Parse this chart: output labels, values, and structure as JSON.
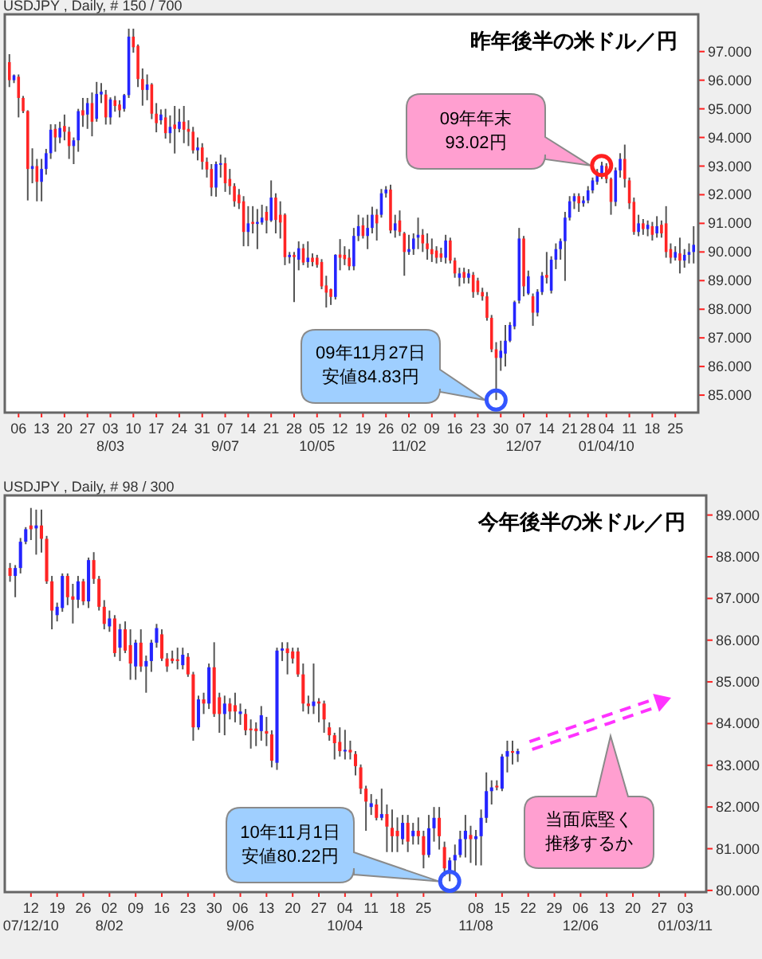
{
  "chart_data": [
    {
      "type": "candlestick",
      "subtitle": "USDJPY , Daily, # 150 / 700",
      "title": "昨年後半の米ドル／円",
      "categories": [
        null,
        null,
        "06",
        null,
        null,
        null,
        null,
        "13",
        null,
        null,
        null,
        null,
        "20",
        null,
        null,
        null,
        null,
        "27",
        null,
        null,
        null,
        null,
        "03",
        null,
        null,
        null,
        null,
        "10",
        null,
        null,
        null,
        null,
        "17",
        null,
        null,
        null,
        null,
        "24",
        null,
        null,
        null,
        null,
        "31",
        null,
        null,
        null,
        null,
        "07",
        null,
        null,
        null,
        null,
        "14",
        null,
        null,
        null,
        null,
        "21",
        null,
        null,
        null,
        null,
        "28",
        null,
        null,
        null,
        null,
        "05",
        null,
        null,
        null,
        null,
        "12",
        null,
        null,
        null,
        null,
        "19",
        null,
        null,
        null,
        null,
        "26",
        null,
        null,
        null,
        null,
        "02",
        null,
        null,
        null,
        null,
        "09",
        null,
        null,
        null,
        null,
        "16",
        null,
        null,
        null,
        null,
        "23",
        null,
        null,
        null,
        null,
        "30",
        null,
        null,
        null,
        null,
        "07",
        null,
        null,
        null,
        null,
        "14",
        null,
        null,
        null,
        null,
        "21",
        null,
        null,
        null,
        "28",
        null,
        null,
        null,
        "04",
        null,
        null,
        null,
        null,
        "11",
        null,
        null,
        null,
        null,
        "18",
        null,
        null,
        null,
        null,
        "25",
        null,
        null,
        null,
        null
      ],
      "ohlc": [
        [
          96.63,
          96.91,
          95.76,
          96.0
        ],
        [
          96.0,
          96.2,
          95.9,
          96.17
        ],
        [
          96.12,
          96.2,
          94.7,
          95.38
        ],
        [
          95.38,
          95.45,
          94.85,
          94.92
        ],
        [
          94.92,
          94.95,
          91.8,
          92.9
        ],
        [
          92.9,
          93.62,
          92.4,
          93.0
        ],
        [
          93.0,
          93.25,
          91.77,
          92.45
        ],
        [
          92.45,
          93.25,
          91.77,
          92.9
        ],
        [
          92.9,
          93.6,
          92.7,
          93.45
        ],
        [
          93.45,
          94.46,
          93.25,
          94.27
        ],
        [
          94.3,
          94.46,
          93.5,
          94.0
        ],
        [
          94.0,
          94.55,
          93.8,
          94.33
        ],
        [
          94.4,
          94.8,
          93.9,
          94.2
        ],
        [
          94.2,
          94.37,
          93.25,
          93.7
        ],
        [
          93.7,
          94.0,
          93.07,
          93.9
        ],
        [
          93.9,
          95.0,
          93.5,
          94.92
        ],
        [
          94.95,
          95.38,
          94.37,
          94.77
        ],
        [
          94.8,
          95.38,
          94.3,
          95.2
        ],
        [
          95.2,
          95.57,
          94.04,
          94.55
        ],
        [
          94.65,
          95.94,
          94.55,
          95.52
        ],
        [
          95.5,
          95.9,
          95.2,
          95.6
        ],
        [
          95.5,
          95.66,
          94.45,
          94.7
        ],
        [
          94.7,
          95.4,
          94.45,
          95.33
        ],
        [
          95.3,
          95.45,
          94.9,
          95.1
        ],
        [
          95.15,
          95.3,
          94.7,
          94.95
        ],
        [
          95.0,
          95.52,
          94.9,
          95.48
        ],
        [
          95.48,
          97.8,
          95.38,
          97.52
        ],
        [
          97.52,
          97.8,
          96.96,
          97.15
        ],
        [
          97.2,
          97.25,
          95.76,
          96.04
        ],
        [
          96.04,
          96.41,
          95.11,
          95.66
        ],
        [
          95.66,
          96.2,
          95.3,
          95.85
        ],
        [
          95.85,
          95.9,
          94.64,
          94.83
        ],
        [
          94.83,
          95.2,
          94.18,
          94.5
        ],
        [
          94.6,
          94.98,
          94.45,
          94.8
        ],
        [
          94.7,
          95.0,
          93.96,
          94.15
        ],
        [
          94.15,
          94.77,
          93.8,
          94.37
        ],
        [
          94.45,
          95.1,
          93.44,
          94.3
        ],
        [
          94.3,
          95.0,
          94.18,
          94.55
        ],
        [
          94.55,
          95.1,
          93.8,
          94.27
        ],
        [
          94.3,
          94.6,
          93.7,
          94.2
        ],
        [
          94.2,
          94.37,
          93.44,
          93.55
        ],
        [
          93.55,
          94.0,
          93.2,
          93.65
        ],
        [
          93.65,
          93.8,
          92.88,
          93.15
        ],
        [
          93.15,
          93.3,
          92.6,
          92.88
        ],
        [
          92.9,
          93.07,
          91.95,
          92.25
        ],
        [
          92.25,
          93.16,
          91.93,
          93.07
        ],
        [
          93.07,
          93.4,
          92.6,
          93.1
        ],
        [
          93.1,
          93.3,
          92.1,
          92.4
        ],
        [
          92.55,
          92.9,
          92.0,
          92.3
        ],
        [
          92.3,
          92.4,
          91.58,
          91.77
        ],
        [
          92.0,
          92.2,
          91.5,
          91.7
        ],
        [
          91.77,
          91.95,
          90.2,
          90.7
        ],
        [
          90.7,
          91.6,
          90.2,
          91.0
        ],
        [
          91.05,
          91.6,
          90.65,
          90.98
        ],
        [
          90.98,
          91.5,
          90.1,
          91.05
        ],
        [
          91.03,
          91.65,
          90.95,
          91.2
        ],
        [
          91.4,
          91.6,
          90.65,
          91.1
        ],
        [
          91.1,
          92.5,
          91.05,
          91.9
        ],
        [
          91.9,
          92.05,
          90.65,
          91.12
        ],
        [
          91.3,
          91.77,
          90.47,
          91.03
        ],
        [
          91.3,
          91.35,
          89.54,
          89.82
        ],
        [
          89.82,
          90.0,
          89.6,
          89.9
        ],
        [
          89.9,
          90.0,
          88.25,
          89.82
        ],
        [
          89.73,
          90.37,
          89.36,
          90.13
        ],
        [
          90.13,
          90.28,
          89.54,
          89.63
        ],
        [
          89.65,
          90.37,
          89.45,
          89.8
        ],
        [
          89.8,
          89.95,
          89.5,
          89.65
        ],
        [
          89.8,
          89.9,
          89.45,
          89.55
        ],
        [
          89.65,
          89.75,
          88.7,
          88.8
        ],
        [
          88.83,
          89.17,
          88.06,
          88.58
        ],
        [
          88.7,
          88.72,
          88.15,
          88.43
        ],
        [
          88.43,
          89.92,
          88.34,
          89.9
        ],
        [
          89.91,
          90.45,
          89.36,
          89.8
        ],
        [
          89.9,
          90.2,
          89.54,
          89.75
        ],
        [
          89.8,
          90.1,
          89.36,
          89.5
        ],
        [
          89.5,
          90.84,
          89.36,
          90.56
        ],
        [
          90.56,
          91.3,
          90.38,
          90.9
        ],
        [
          90.93,
          91.2,
          90.47,
          90.56
        ],
        [
          90.56,
          91.3,
          90.1,
          90.84
        ],
        [
          90.84,
          91.58,
          90.65,
          91.3
        ],
        [
          91.3,
          91.5,
          90.4,
          91.0
        ],
        [
          91.3,
          92.2,
          91.2,
          92.05
        ],
        [
          92.05,
          92.3,
          91.9,
          92.18
        ],
        [
          92.18,
          92.35,
          90.65,
          90.75
        ],
        [
          90.75,
          91.3,
          90.5,
          91.0
        ],
        [
          91.1,
          91.45,
          90.56,
          90.7
        ],
        [
          90.65,
          90.7,
          89.17,
          90.0
        ],
        [
          90.0,
          90.6,
          89.9,
          90.1
        ],
        [
          90.1,
          90.65,
          89.9,
          90.47
        ],
        [
          90.5,
          91.2,
          90.1,
          90.6
        ],
        [
          90.6,
          90.8,
          90.0,
          90.3
        ],
        [
          90.3,
          90.65,
          89.73,
          90.1
        ],
        [
          90.1,
          90.47,
          89.65,
          89.92
        ],
        [
          90.05,
          90.2,
          89.6,
          89.8
        ],
        [
          89.95,
          90.15,
          89.65,
          89.8
        ],
        [
          89.8,
          90.6,
          89.6,
          90.4
        ],
        [
          90.4,
          90.5,
          89.6,
          89.7
        ],
        [
          89.7,
          89.8,
          89.1,
          89.25
        ],
        [
          89.1,
          89.45,
          88.8,
          89.25
        ],
        [
          89.3,
          89.45,
          88.9,
          89.1
        ],
        [
          89.1,
          89.4,
          88.9,
          89.25
        ],
        [
          89.2,
          89.3,
          88.4,
          88.6
        ],
        [
          89.0,
          89.1,
          88.5,
          88.6
        ],
        [
          88.6,
          88.75,
          88.3,
          88.45
        ],
        [
          88.45,
          88.6,
          87.6,
          87.7
        ],
        [
          87.7,
          87.8,
          86.5,
          86.6
        ],
        [
          86.6,
          86.85,
          84.83,
          86.3
        ],
        [
          86.3,
          86.9,
          85.85,
          86.55
        ],
        [
          86.45,
          87.45,
          86.0,
          86.9
        ],
        [
          86.9,
          87.55,
          86.85,
          87.45
        ],
        [
          87.4,
          88.3,
          87.3,
          88.25
        ],
        [
          88.3,
          90.84,
          88.2,
          90.47
        ],
        [
          90.47,
          90.56,
          88.45,
          88.8
        ],
        [
          88.55,
          89.35,
          88.5,
          89.15
        ],
        [
          88.45,
          88.55,
          87.42,
          87.88
        ],
        [
          87.88,
          88.7,
          87.75,
          88.61
        ],
        [
          88.6,
          89.3,
          88.5,
          89.17
        ],
        [
          89.2,
          90.0,
          88.9,
          89.1
        ],
        [
          88.65,
          89.85,
          88.55,
          89.73
        ],
        [
          89.73,
          90.3,
          89.4,
          90.1
        ],
        [
          90.1,
          90.47,
          89.73,
          90.38
        ],
        [
          90.38,
          91.4,
          88.99,
          91.2
        ],
        [
          91.2,
          91.95,
          91.1,
          91.77
        ],
        [
          91.77,
          92.05,
          91.5,
          91.95
        ],
        [
          91.95,
          92.05,
          91.4,
          91.7
        ],
        [
          91.7,
          91.95,
          91.58,
          91.8
        ],
        [
          91.8,
          92.3,
          91.7,
          92.15
        ],
        [
          92.15,
          92.6,
          92.05,
          92.5
        ],
        [
          92.45,
          92.9,
          92.35,
          92.7
        ],
        [
          92.65,
          93.15,
          92.55,
          93.02
        ],
        [
          93.0,
          93.1,
          92.4,
          92.55
        ],
        [
          92.55,
          92.6,
          91.3,
          91.75
        ],
        [
          91.75,
          92.95,
          91.6,
          92.85
        ],
        [
          92.85,
          93.45,
          92.6,
          93.25
        ],
        [
          93.25,
          93.75,
          92.25,
          92.55
        ],
        [
          92.5,
          92.6,
          91.5,
          91.7
        ],
        [
          91.75,
          91.9,
          90.6,
          90.7
        ],
        [
          90.7,
          91.3,
          90.55,
          91.0
        ],
        [
          91.0,
          91.15,
          90.6,
          90.8
        ],
        [
          90.8,
          91.1,
          90.55,
          90.95
        ],
        [
          90.9,
          91.05,
          90.4,
          90.6
        ],
        [
          90.65,
          91.25,
          90.5,
          90.9
        ],
        [
          90.95,
          91.1,
          90.5,
          90.65
        ],
        [
          91.0,
          91.6,
          89.8,
          90.0
        ],
        [
          90.1,
          90.3,
          89.6,
          89.8
        ],
        [
          89.8,
          90.2,
          89.7,
          90.0
        ],
        [
          89.95,
          90.5,
          89.25,
          89.7
        ],
        [
          89.7,
          90.1,
          89.45,
          89.9
        ],
        [
          89.9,
          90.3,
          89.6,
          90.0
        ],
        [
          90.0,
          90.9,
          89.6,
          90.25
        ]
      ],
      "ylim": [
        84.39,
        98.3
      ],
      "yticks": [
        {
          "value": 85,
          "label": "85.000"
        },
        {
          "value": 86,
          "label": "86.000"
        },
        {
          "value": 87,
          "label": "87.000"
        },
        {
          "value": 88,
          "label": "88.000"
        },
        {
          "value": 89,
          "label": "89.000"
        },
        {
          "value": 90,
          "label": "90.000"
        },
        {
          "value": 91,
          "label": "91.000"
        },
        {
          "value": 92,
          "label": "92.000"
        },
        {
          "value": 93,
          "label": "93.000"
        },
        {
          "value": 94,
          "label": "94.000"
        },
        {
          "value": 95,
          "label": "95.000"
        },
        {
          "value": 96,
          "label": "96.000"
        },
        {
          "value": 97,
          "label": "97.000"
        }
      ],
      "annotations": [
        "09年11月27日安値84.83円",
        "09年年末93.02円",
        "8/03",
        "9/07",
        "10/05",
        "11/02",
        "12/07",
        "01/04/10"
      ]
    },
    {
      "type": "candlestick",
      "subtitle": "USDJPY , Daily, # 98 / 300",
      "title": "今年後半の米ドル／円",
      "categories": [
        null,
        null,
        null,
        null,
        "12",
        null,
        null,
        null,
        null,
        "19",
        null,
        null,
        null,
        null,
        "26",
        null,
        null,
        null,
        null,
        "02",
        null,
        null,
        null,
        null,
        "09",
        null,
        null,
        null,
        null,
        "16",
        null,
        null,
        null,
        null,
        "23",
        null,
        null,
        null,
        null,
        "30",
        null,
        null,
        null,
        null,
        "06",
        null,
        null,
        null,
        null,
        "13",
        null,
        null,
        null,
        null,
        "20",
        null,
        null,
        null,
        null,
        "27",
        null,
        null,
        null,
        null,
        "04",
        null,
        null,
        null,
        null,
        "11",
        null,
        null,
        null,
        null,
        "18",
        null,
        null,
        null,
        null,
        "25",
        null,
        null,
        null,
        null,
        null,
        null,
        null,
        null,
        null,
        "08",
        null,
        null,
        null,
        null,
        "15",
        null,
        null,
        null,
        null,
        "22",
        null,
        null,
        null,
        null,
        "29",
        null,
        null,
        null,
        null,
        "06",
        null,
        null,
        null,
        null,
        "13",
        null,
        null,
        null,
        null,
        "20",
        null,
        null,
        null,
        null,
        "27",
        null,
        null,
        null,
        null,
        "03",
        null,
        null,
        null
      ],
      "ohlc": [
        [
          87.73,
          87.85,
          87.4,
          87.54
        ],
        [
          87.54,
          87.8,
          87.03,
          87.73
        ],
        [
          87.73,
          88.45,
          87.6,
          88.36
        ],
        [
          88.36,
          88.71,
          88.3,
          88.66
        ],
        [
          88.75,
          89.17,
          88.4,
          88.66
        ],
        [
          88.68,
          89.13,
          88.05,
          88.75
        ],
        [
          88.75,
          89.13,
          88.1,
          88.43
        ],
        [
          88.43,
          88.5,
          87.35,
          87.41
        ],
        [
          87.41,
          87.54,
          86.26,
          86.71
        ],
        [
          86.6,
          86.9,
          86.45,
          86.8
        ],
        [
          86.77,
          87.6,
          86.68,
          87.54
        ],
        [
          87.54,
          87.6,
          86.84,
          87.03
        ],
        [
          87.05,
          87.35,
          86.4,
          86.97
        ],
        [
          86.97,
          87.54,
          86.77,
          87.41
        ],
        [
          87.41,
          87.47,
          86.84,
          86.93
        ],
        [
          86.93,
          87.98,
          86.77,
          87.92
        ],
        [
          87.92,
          88.11,
          87.35,
          87.47
        ],
        [
          87.47,
          87.54,
          86.71,
          86.8
        ],
        [
          86.8,
          86.96,
          86.26,
          86.39
        ],
        [
          86.33,
          86.71,
          86.2,
          86.52
        ],
        [
          86.52,
          86.6,
          85.6,
          85.69
        ],
        [
          85.82,
          86.39,
          85.5,
          86.26
        ],
        [
          86.26,
          86.45,
          85.69,
          85.75
        ],
        [
          85.88,
          86.26,
          85.05,
          85.44
        ],
        [
          85.37,
          86.01,
          85.05,
          85.94
        ],
        [
          85.94,
          86.26,
          85.24,
          85.37
        ],
        [
          85.37,
          85.63,
          84.74,
          85.5
        ],
        [
          85.5,
          86.01,
          85.24,
          85.94
        ],
        [
          85.94,
          86.39,
          85.82,
          86.29
        ],
        [
          86.14,
          86.26,
          85.5,
          85.56
        ],
        [
          85.56,
          85.69,
          85.24,
          85.37
        ],
        [
          85.56,
          85.75,
          85.44,
          85.5
        ],
        [
          85.54,
          85.82,
          85.3,
          85.5
        ],
        [
          85.4,
          85.82,
          85.3,
          85.65
        ],
        [
          85.6,
          85.69,
          85.12,
          85.18
        ],
        [
          85.18,
          85.24,
          83.59,
          83.91
        ],
        [
          83.91,
          84.67,
          83.85,
          84.58
        ],
        [
          84.58,
          84.74,
          84.23,
          84.48
        ],
        [
          84.48,
          85.44,
          84.35,
          85.35
        ],
        [
          85.35,
          85.95,
          84.16,
          84.23
        ],
        [
          84.63,
          84.74,
          83.78,
          84.23
        ],
        [
          84.23,
          84.67,
          83.72,
          84.48
        ],
        [
          84.48,
          84.61,
          84.1,
          84.29
        ],
        [
          84.44,
          84.74,
          84.03,
          84.29
        ],
        [
          84.23,
          84.48,
          83.97,
          84.29
        ],
        [
          84.23,
          84.35,
          83.72,
          83.84
        ],
        [
          83.88,
          84.1,
          83.4,
          83.84
        ],
        [
          83.88,
          84.03,
          83.46,
          83.82
        ],
        [
          83.82,
          84.42,
          83.59,
          84.2
        ],
        [
          83.82,
          84.16,
          83.46,
          83.76
        ],
        [
          83.74,
          83.84,
          82.95,
          83.11
        ],
        [
          83.06,
          85.82,
          82.89,
          85.75
        ],
        [
          85.75,
          85.95,
          85.5,
          85.8
        ],
        [
          85.8,
          85.95,
          85.18,
          85.69
        ],
        [
          85.73,
          85.82,
          85.44,
          85.56
        ],
        [
          85.73,
          85.82,
          85.12,
          85.18
        ],
        [
          85.18,
          85.44,
          84.29,
          84.48
        ],
        [
          84.48,
          84.67,
          84.23,
          84.42
        ],
        [
          84.42,
          85.44,
          84.23,
          84.53
        ],
        [
          84.53,
          84.61,
          84.03,
          84.48
        ],
        [
          84.48,
          84.55,
          83.78,
          84.1
        ],
        [
          83.91,
          84.03,
          83.59,
          83.72
        ],
        [
          83.72,
          83.78,
          83.14,
          83.53
        ],
        [
          83.56,
          83.91,
          83.21,
          83.34
        ],
        [
          83.34,
          83.85,
          83.14,
          83.37
        ],
        [
          83.37,
          83.59,
          83.14,
          83.31
        ],
        [
          83.27,
          83.34,
          82.76,
          82.98
        ],
        [
          82.95,
          83.02,
          82.31,
          82.44
        ],
        [
          82.44,
          82.51,
          81.43,
          82.13
        ],
        [
          82.0,
          82.31,
          81.81,
          82.09
        ],
        [
          82.06,
          82.19,
          81.68,
          81.74
        ],
        [
          81.74,
          82.44,
          81.68,
          81.83
        ],
        [
          81.83,
          82.06,
          80.92,
          81.53
        ],
        [
          81.5,
          81.94,
          80.92,
          81.3
        ],
        [
          81.43,
          81.75,
          80.92,
          81.3
        ],
        [
          81.23,
          81.81,
          81.1,
          81.62
        ],
        [
          81.62,
          81.81,
          80.92,
          81.17
        ],
        [
          81.3,
          81.62,
          81.1,
          81.43
        ],
        [
          81.43,
          81.75,
          81.1,
          81.3
        ],
        [
          81.3,
          81.43,
          80.53,
          80.85
        ],
        [
          80.85,
          81.81,
          80.79,
          81.49
        ],
        [
          81.49,
          82.0,
          81.17,
          81.74
        ],
        [
          81.74,
          82.0,
          80.98,
          81.3
        ],
        [
          81.04,
          81.17,
          80.34,
          80.53
        ],
        [
          80.47,
          80.79,
          80.22,
          80.72
        ],
        [
          80.72,
          81.1,
          80.41,
          80.85
        ],
        [
          80.85,
          81.43,
          80.79,
          81.23
        ],
        [
          81.23,
          81.81,
          80.79,
          81.43
        ],
        [
          81.33,
          81.55,
          80.66,
          81.23
        ],
        [
          81.23,
          81.45,
          80.6,
          81.3
        ],
        [
          81.3,
          81.94,
          80.6,
          81.74
        ],
        [
          81.74,
          82.83,
          81.62,
          82.38
        ],
        [
          82.38,
          82.64,
          82.06,
          82.47
        ],
        [
          82.51,
          82.64,
          82.4,
          82.47
        ],
        [
          82.44,
          83.27,
          82.38,
          83.21
        ],
        [
          83.21,
          83.59,
          82.83,
          83.34
        ],
        [
          83.34,
          83.59,
          83.02,
          83.31
        ],
        [
          83.27,
          83.4,
          83.08,
          83.34
        ],
        null,
        null,
        null,
        null,
        null,
        null,
        null,
        null,
        null,
        null,
        null,
        null,
        null,
        null,
        null,
        null,
        null,
        null,
        null,
        null,
        null,
        null,
        null,
        null,
        null,
        null,
        null,
        null,
        null,
        null,
        null,
        null,
        null,
        null,
        null
      ],
      "ylim": [
        79.96,
        89.47
      ],
      "yticks": [
        {
          "value": 80,
          "label": "80.000"
        },
        {
          "value": 81,
          "label": "81.000"
        },
        {
          "value": 82,
          "label": "82.000"
        },
        {
          "value": 83,
          "label": "83.000"
        },
        {
          "value": 84,
          "label": "84.000"
        },
        {
          "value": 85,
          "label": "85.000"
        },
        {
          "value": 86,
          "label": "86.000"
        },
        {
          "value": 87,
          "label": "87.000"
        },
        {
          "value": 88,
          "label": "88.000"
        },
        {
          "value": 89,
          "label": "89.000"
        }
      ],
      "annotations": [
        "10年11月1日安値80.22円",
        "当面底堅く推移するか",
        "07/12/10",
        "8/02",
        "9/06",
        "10/04",
        "11/08",
        "12/06",
        "01/03/11"
      ]
    }
  ]
}
